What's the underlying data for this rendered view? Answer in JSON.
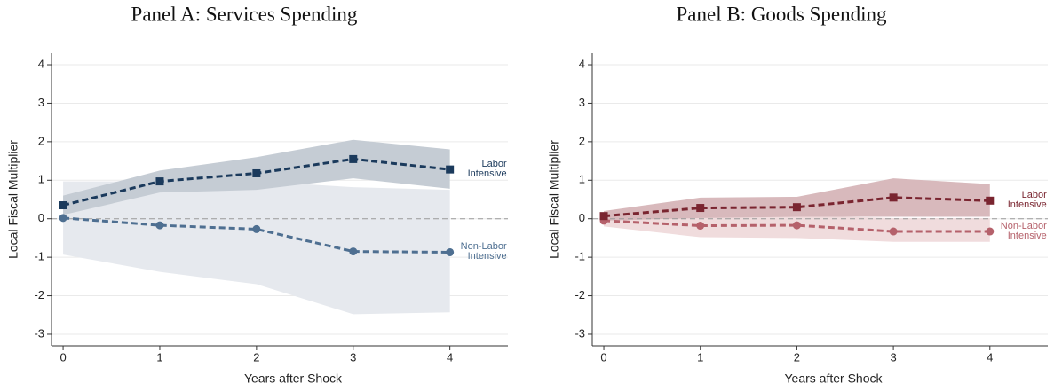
{
  "chart_data": [
    {
      "type": "line",
      "title": "Panel A: Services Spending",
      "xlabel": "Years after Shock",
      "ylabel": "Local Fiscal Multiplier",
      "x": [
        0,
        1,
        2,
        3,
        4
      ],
      "xlim": [
        -0.12,
        4.6
      ],
      "xticks": [
        0,
        1,
        2,
        3,
        4
      ],
      "ylim": [
        -3.3,
        4.3
      ],
      "yticks": [
        -3,
        -2,
        -1,
        0,
        1,
        2,
        3,
        4
      ],
      "grid": true,
      "series": [
        {
          "name": "Non-Labor Intensive",
          "color": "#4e6f91",
          "band_color": "#e6e9ee",
          "marker": "circle",
          "values": [
            0.02,
            -0.17,
            -0.27,
            -0.85,
            -0.87
          ],
          "lower": [
            -0.93,
            -1.38,
            -1.7,
            -2.48,
            -2.43
          ],
          "upper": [
            0.97,
            0.97,
            0.97,
            0.82,
            0.75
          ]
        },
        {
          "name": "Labor Intensive",
          "color": "#1b3a5c",
          "band_color": "#c5ccd4",
          "marker": "square",
          "values": [
            0.35,
            0.97,
            1.18,
            1.55,
            1.28
          ],
          "lower": [
            0.1,
            0.68,
            0.75,
            1.05,
            0.78
          ],
          "upper": [
            0.6,
            1.25,
            1.6,
            2.05,
            1.8
          ]
        }
      ]
    },
    {
      "type": "line",
      "title": "Panel B: Goods Spending",
      "xlabel": "Years after Shock",
      "ylabel": "Local Fiscal Multiplier",
      "x": [
        0,
        1,
        2,
        3,
        4
      ],
      "xlim": [
        -0.12,
        4.6
      ],
      "xticks": [
        0,
        1,
        2,
        3,
        4
      ],
      "ylim": [
        -3.3,
        4.3
      ],
      "yticks": [
        -3,
        -2,
        -1,
        0,
        1,
        2,
        3,
        4
      ],
      "grid": true,
      "series": [
        {
          "name": "Non-Labor Intensive",
          "color": "#b5616b",
          "band_color": "#f0dcdd",
          "marker": "circle",
          "values": [
            -0.05,
            -0.18,
            -0.17,
            -0.33,
            -0.33
          ],
          "lower": [
            -0.2,
            -0.48,
            -0.5,
            -0.6,
            -0.6
          ],
          "upper": [
            0.05,
            0.08,
            0.08,
            0.02,
            0.02
          ]
        },
        {
          "name": "Labor Intensive",
          "color": "#7a2530",
          "band_color": "#d8b9bc",
          "marker": "square",
          "values": [
            0.07,
            0.28,
            0.3,
            0.55,
            0.47
          ],
          "lower": [
            -0.05,
            0.02,
            0.05,
            0.05,
            0.05
          ],
          "upper": [
            0.2,
            0.55,
            0.57,
            1.05,
            0.9
          ]
        }
      ]
    }
  ]
}
